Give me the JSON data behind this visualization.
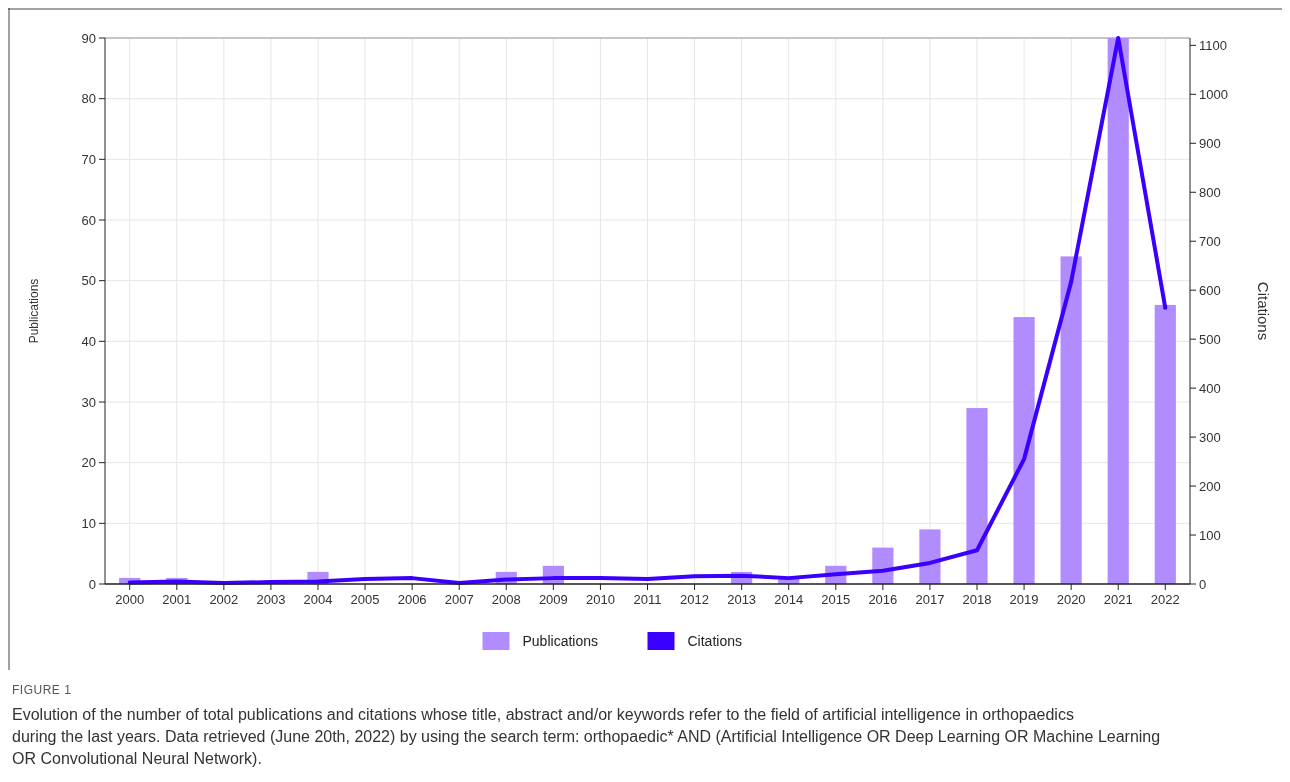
{
  "chart_data": {
    "type": "bar",
    "categories": [
      "2000",
      "2001",
      "2002",
      "2003",
      "2004",
      "2005",
      "2006",
      "2007",
      "2008",
      "2009",
      "2010",
      "2011",
      "2012",
      "2013",
      "2014",
      "2015",
      "2016",
      "2017",
      "2018",
      "2019",
      "2020",
      "2021",
      "2022"
    ],
    "series": [
      {
        "name": "Publications",
        "color": "#b18cfe",
        "values": [
          1,
          1,
          0,
          0,
          2,
          null,
          0,
          0,
          2,
          3,
          0,
          0,
          0,
          2,
          1,
          3,
          6,
          9,
          29,
          44,
          54,
          90,
          46
        ]
      },
      {
        "name": "Citations",
        "color": "#3a00ff",
        "type": "line",
        "axis": "y2",
        "values": [
          3,
          5,
          2,
          4,
          5,
          10,
          12,
          2,
          9,
          12,
          12,
          10,
          16,
          17,
          12,
          20,
          27,
          43,
          69,
          255,
          617,
          1115,
          564
        ]
      }
    ],
    "ylabel": "Publications",
    "y2label": "Citations",
    "ylim": [
      0,
      90
    ],
    "yticks": [
      0,
      10,
      20,
      30,
      40,
      50,
      60,
      70,
      80,
      90
    ],
    "y2lim": [
      0,
      1115
    ],
    "y2ticks": [
      0,
      100,
      200,
      300,
      400,
      500,
      600,
      700,
      800,
      900,
      1000,
      1100
    ],
    "grid": true,
    "legend": "bottom",
    "marker": "none",
    "annotations": [
      "FIGURE 1",
      "Evolution of the number of total publications and citations whose title, abstract and/or keywords refer to the field of artificial intelligence in orthopaedics during the last years. Data retrieved (June 20th, 2022) by using the search term: orthopaedic* AND (Artificial Intelligence OR Deep Learning OR Machine Learning OR Convolutional Neural Network)."
    ]
  }
}
